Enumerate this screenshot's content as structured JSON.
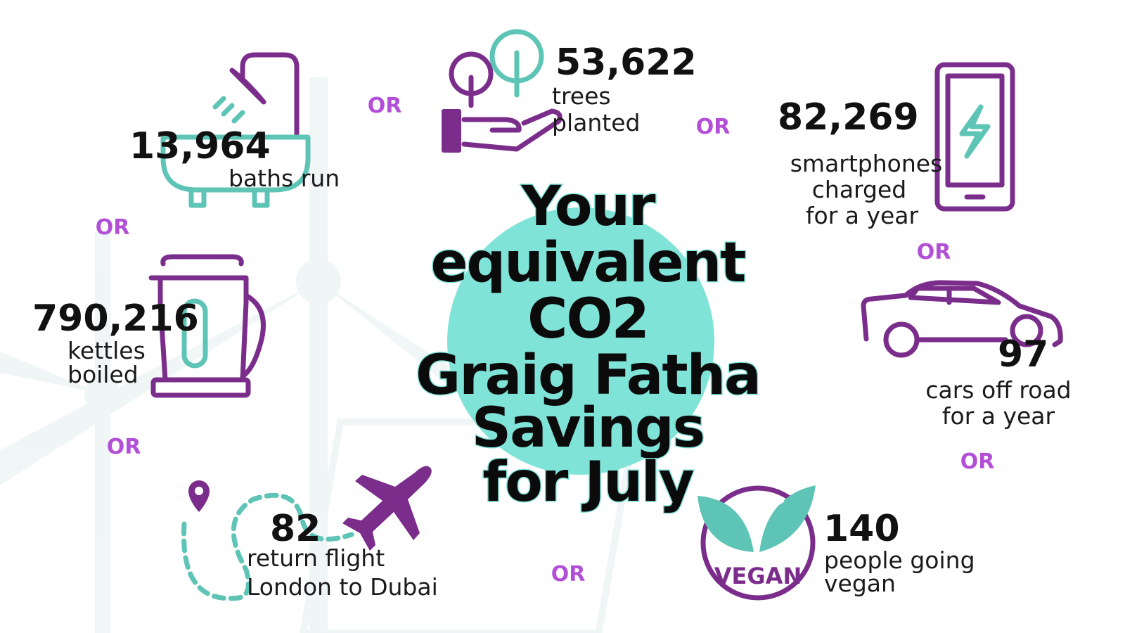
{
  "title_lines": [
    "Your",
    "equivalent",
    "CO2",
    "Graig Fatha",
    "Savings",
    "for July"
  ],
  "items": [
    {
      "value": "13,964",
      "label_lines": [
        "baths run"
      ]
    },
    {
      "value": "53,622",
      "label_lines": [
        "trees",
        "planted"
      ]
    },
    {
      "value": "82,269",
      "label_lines": [
        "smartphones",
        "charged",
        "for a year"
      ]
    },
    {
      "value": "790,216",
      "label_lines": [
        "kettles",
        "boiled"
      ]
    },
    {
      "value": "97",
      "label_lines": [
        "cars off road",
        "for a year"
      ]
    },
    {
      "value": "82",
      "label_lines": [
        "return flight",
        "London to Dubai"
      ]
    },
    {
      "value": "140",
      "label_lines": [
        "people going",
        "vegan"
      ]
    }
  ],
  "separators": [
    "OR",
    "OR",
    "OR",
    "OR",
    "OR",
    "OR",
    "OR"
  ],
  "badge": "VEGAN"
}
